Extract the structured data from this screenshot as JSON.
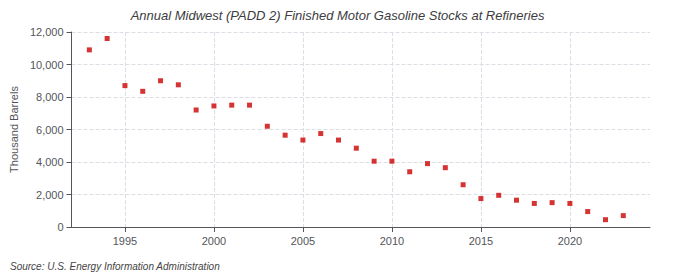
{
  "chart_data": {
    "type": "scatter",
    "title": "Annual Midwest (PADD 2) Finished Motor Gasoline Stocks at Refineries",
    "y_label": "Thousand Barrels",
    "annotations": [
      "Source: U.S. Energy Information Administration"
    ],
    "x": [
      1993,
      1994,
      1995,
      1996,
      1997,
      1998,
      1999,
      2000,
      2001,
      2002,
      2003,
      2004,
      2005,
      2006,
      2007,
      2008,
      2009,
      2010,
      2011,
      2012,
      2013,
      2014,
      2015,
      2016,
      2017,
      2018,
      2019,
      2020,
      2021,
      2022,
      2023
    ],
    "values": [
      10900,
      11600,
      8700,
      8350,
      9000,
      8750,
      7200,
      7450,
      7500,
      7500,
      6200,
      5650,
      5350,
      5750,
      5350,
      4850,
      4050,
      4050,
      3400,
      3900,
      3650,
      2600,
      1750,
      1950,
      1650,
      1450,
      1500,
      1450,
      950,
      450,
      700
    ],
    "color": "#cc0000",
    "marker": "square",
    "xlim": [
      1992,
      2024.5
    ],
    "xticks": [
      1995,
      2000,
      2005,
      2010,
      2015,
      2020
    ],
    "ylim": [
      0,
      12000
    ],
    "yticks": [
      0,
      {
        "value": 2000,
        "label": "2,000"
      },
      {
        "value": 4000,
        "label": "4,000"
      },
      {
        "value": 6000,
        "label": "6,000"
      },
      {
        "value": 8000,
        "label": "8,000"
      },
      {
        "value": 10000,
        "label": "10,000"
      },
      {
        "value": 12000,
        "label": "12,000"
      }
    ],
    "grid": true
  }
}
